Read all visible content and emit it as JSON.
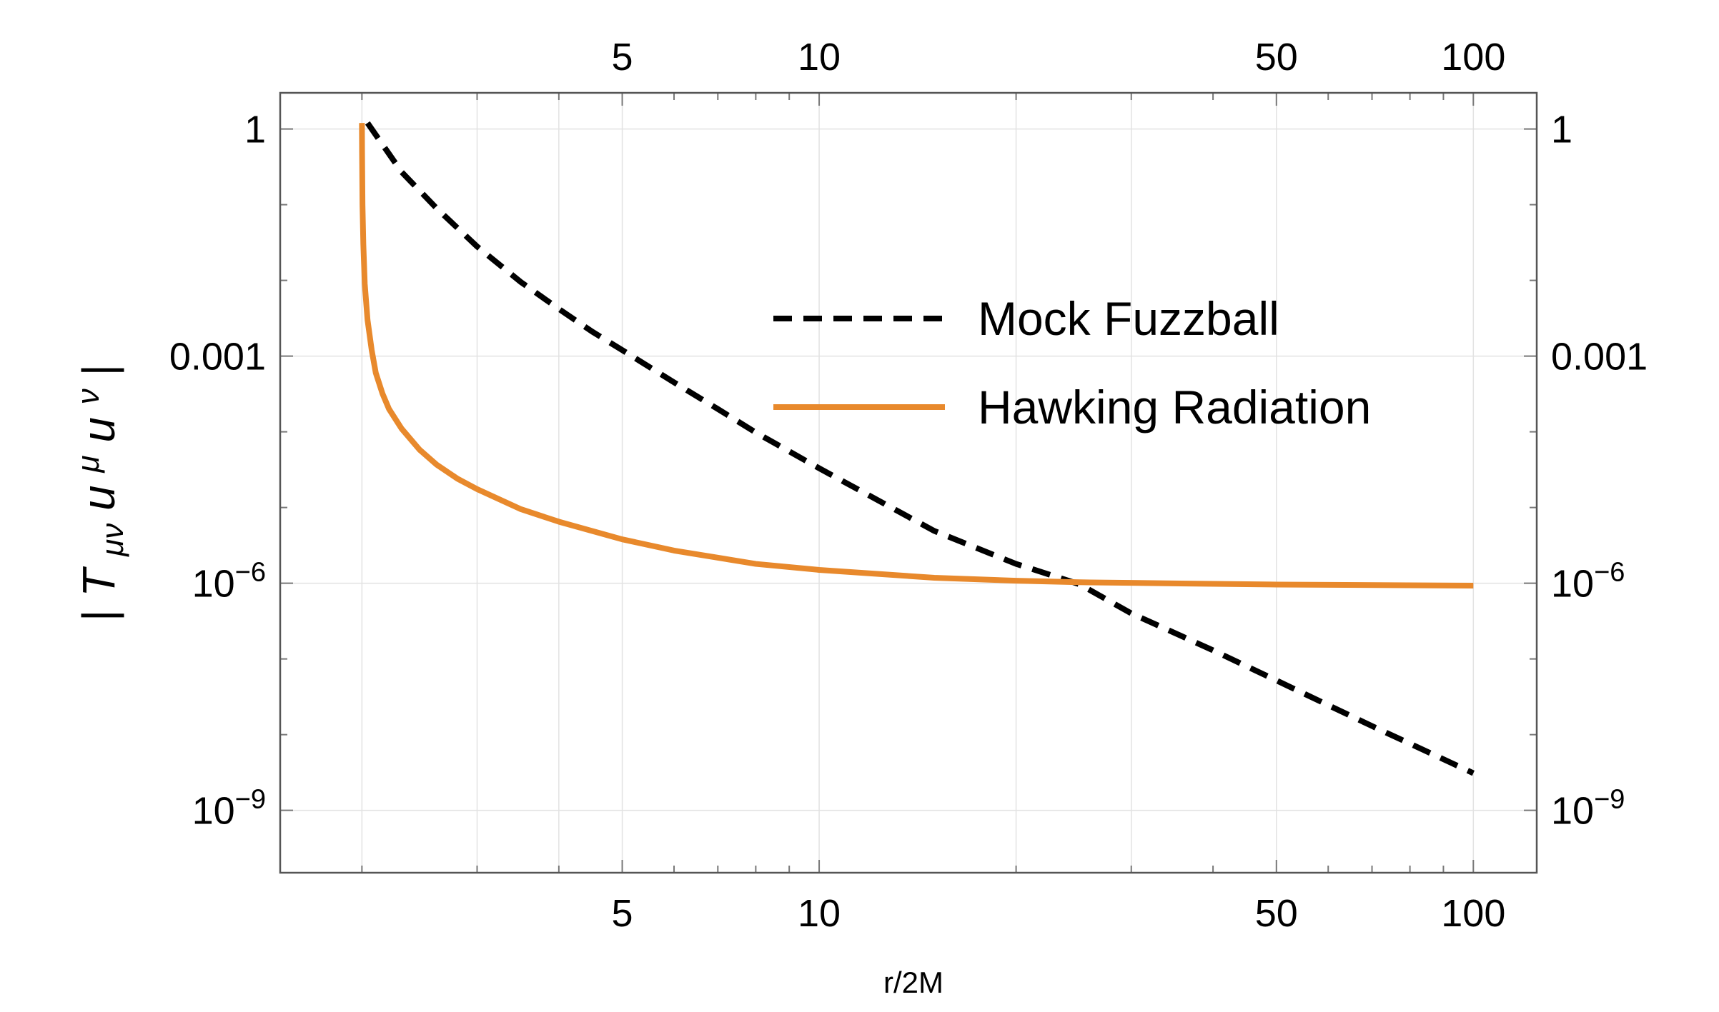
{
  "chart_data": {
    "type": "line",
    "title": "",
    "xlabel": "r/2M",
    "ylabel": "|Tμνuμuν|",
    "ylabel_parts": {
      "bar_left": "|",
      "T": "T",
      "T_sub": "μν",
      "u1": "u",
      "u1_sup": "μ",
      "u2": "u",
      "u2_sup": "ν",
      "bar_right": "|"
    },
    "x_scale": "log",
    "y_scale": "log",
    "xlim": [
      1.5,
      125
    ],
    "ylim": [
      1.5e-10,
      3
    ],
    "x_ticks": [
      {
        "value": 5,
        "label": "5"
      },
      {
        "value": 10,
        "label": "10"
      },
      {
        "value": 50,
        "label": "50"
      },
      {
        "value": 100,
        "label": "100"
      }
    ],
    "y_ticks": [
      {
        "value": 1,
        "label": "1",
        "base": "",
        "exp": ""
      },
      {
        "value": 0.001,
        "label": "0.001",
        "base": "",
        "exp": ""
      },
      {
        "value": 1e-06,
        "label": "",
        "base": "10",
        "exp": "−6"
      },
      {
        "value": 1e-09,
        "label": "",
        "base": "10",
        "exp": "−9"
      }
    ],
    "x_gridlines": [
      2,
      3,
      4,
      5,
      10,
      20,
      30,
      50,
      100
    ],
    "y_gridlines": [
      1,
      0.001,
      1e-06,
      1e-09
    ],
    "legend_position": "upper-right",
    "series": [
      {
        "name": "Mock Fuzzball",
        "style": "dashed",
        "color": "#000000",
        "x": [
          2.04,
          2.3,
          2.6,
          3.0,
          3.5,
          4.0,
          4.5,
          5.0,
          6.0,
          7.0,
          8.0,
          10.0,
          12.0,
          15.0,
          20.0,
          25.0,
          30.0,
          40.0,
          50.0,
          70.0,
          100.0
        ],
        "y": [
          1.2,
          0.27,
          0.09,
          0.028,
          0.0095,
          0.0042,
          0.0021,
          0.0012,
          0.00045,
          0.0002,
          9.8e-05,
          3.3e-05,
          1.4e-05,
          4.9e-06,
          1.8e-06,
          9.7e-07,
          4e-07,
          1.3e-07,
          5.2e-08,
          1.3e-08,
          3.1e-09
        ]
      },
      {
        "name": "Hawking Radiation",
        "style": "solid",
        "color": "#E8892C",
        "x": [
          2.0,
          2.001,
          2.004,
          2.01,
          2.02,
          2.04,
          2.07,
          2.1,
          2.15,
          2.2,
          2.3,
          2.45,
          2.6,
          2.8,
          3.0,
          3.5,
          4.0,
          5.0,
          6.0,
          8.0,
          10.0,
          15.0,
          20.0,
          25.0,
          30.0,
          50.0,
          100.0
        ],
        "y": [
          1.2,
          0.5,
          0.1,
          0.03,
          0.009,
          0.003,
          0.0012,
          0.0006,
          0.00032,
          0.0002,
          0.00011,
          5.8e-05,
          3.7e-05,
          2.4e-05,
          1.75e-05,
          9.5e-06,
          6.5e-06,
          3.8e-06,
          2.7e-06,
          1.8e-06,
          1.5e-06,
          1.18e-06,
          1.08e-06,
          1.03e-06,
          1.01e-06,
          9.6e-07,
          9.3e-07
        ]
      }
    ]
  }
}
